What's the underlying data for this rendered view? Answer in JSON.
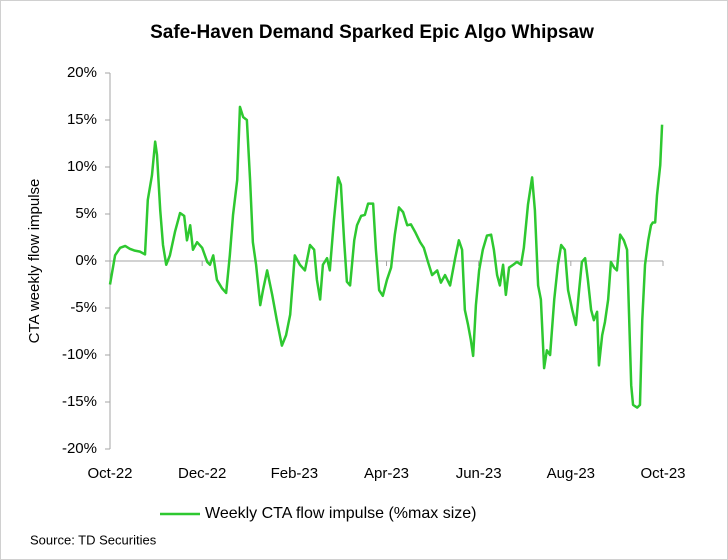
{
  "chart_data": {
    "type": "line",
    "title": "Safe-Haven Demand Sparked Epic Algo Whipsaw",
    "y_label": "CTA weekly flow impulse",
    "source": "Source: TD Securities",
    "xlim": [
      0,
      12
    ],
    "xticks": [
      {
        "value": 0,
        "label": "Oct-22"
      },
      {
        "value": 2,
        "label": "Dec-22"
      },
      {
        "value": 4,
        "label": "Feb-23"
      },
      {
        "value": 6,
        "label": "Apr-23"
      },
      {
        "value": 8,
        "label": "Jun-23"
      },
      {
        "value": 10,
        "label": "Aug-23"
      },
      {
        "value": 12,
        "label": "Oct-23"
      }
    ],
    "ylim": [
      -20,
      20
    ],
    "yticks": [
      {
        "value": -20,
        "label": "-20%"
      },
      {
        "value": -15,
        "label": "-15%"
      },
      {
        "value": -10,
        "label": "-10%"
      },
      {
        "value": -5,
        "label": "-5%"
      },
      {
        "value": 0,
        "label": "0%"
      },
      {
        "value": 5,
        "label": "5%"
      },
      {
        "value": 10,
        "label": "10%"
      },
      {
        "value": 15,
        "label": "15%"
      },
      {
        "value": 20,
        "label": "20%"
      }
    ],
    "grid": false,
    "legend": "bottom",
    "series": [
      {
        "name": "Weekly CTA flow impulse (%max size)",
        "color": "#2ec830",
        "x": [
          0,
          0.11,
          0.22,
          0.33,
          0.43,
          0.54,
          0.65,
          0.76,
          0.82,
          0.91,
          0.98,
          1.02,
          1.09,
          1.15,
          1.22,
          1.3,
          1.41,
          1.52,
          1.61,
          1.67,
          1.74,
          1.8,
          1.89,
          2.0,
          2.11,
          2.17,
          2.24,
          2.32,
          2.43,
          2.52,
          2.6,
          2.67,
          2.76,
          2.82,
          2.89,
          2.97,
          3.04,
          3.1,
          3.17,
          3.26,
          3.32,
          3.41,
          3.52,
          3.62,
          3.73,
          3.82,
          3.91,
          4.01,
          4.12,
          4.23,
          4.34,
          4.43,
          4.49,
          4.56,
          4.62,
          4.71,
          4.77,
          4.86,
          4.95,
          5.01,
          5.08,
          5.14,
          5.21,
          5.3,
          5.36,
          5.45,
          5.53,
          5.6,
          5.71,
          5.77,
          5.84,
          5.92,
          6.01,
          6.1,
          6.18,
          6.27,
          6.36,
          6.45,
          6.53,
          6.62,
          6.73,
          6.81,
          6.9,
          6.99,
          7.1,
          7.18,
          7.27,
          7.38,
          7.49,
          7.57,
          7.64,
          7.7,
          7.77,
          7.83,
          7.88,
          7.94,
          8.01,
          8.09,
          8.18,
          8.27,
          8.33,
          8.4,
          8.46,
          8.53,
          8.59,
          8.66,
          8.75,
          8.83,
          8.92,
          8.98,
          9.07,
          9.16,
          9.22,
          9.29,
          9.35,
          9.42,
          9.48,
          9.55,
          9.64,
          9.72,
          9.79,
          9.87,
          9.94,
          10.03,
          10.11,
          10.18,
          10.24,
          10.31,
          10.37,
          10.44,
          10.5,
          10.57,
          10.61,
          10.68,
          10.74,
          10.81,
          10.87,
          10.94,
          11.0,
          11.07,
          11.15,
          11.22,
          11.26,
          11.31,
          11.35,
          11.44,
          11.5,
          11.55,
          11.61,
          11.68,
          11.74,
          11.78,
          11.83,
          11.87,
          11.94,
          11.98
        ],
        "values": [
          -2.5,
          0.6,
          1.4,
          1.6,
          1.3,
          1.1,
          1,
          0.7,
          6.5,
          9.1,
          12.7,
          11.3,
          5.4,
          1.7,
          -0.4,
          0.6,
          3.1,
          5.1,
          4.8,
          2.2,
          3.8,
          1.2,
          2,
          1.4,
          -0.1,
          -0.4,
          0.6,
          -2,
          -2.9,
          -3.4,
          0.6,
          4.9,
          8.6,
          16.4,
          15.3,
          15,
          8.6,
          2,
          -0.4,
          -4.7,
          -3.1,
          -1,
          -3.6,
          -6.3,
          -9,
          -7.9,
          -5.7,
          0.6,
          -0.4,
          -1,
          1.7,
          1.2,
          -2,
          -4.1,
          -0.4,
          0.3,
          -1,
          4.4,
          8.9,
          8.1,
          2.2,
          -2.2,
          -2.6,
          2.2,
          3.8,
          4.8,
          4.9,
          6.1,
          6.1,
          1.2,
          -3.1,
          -3.7,
          -2,
          -0.7,
          2.8,
          5.7,
          5.2,
          3.8,
          3.9,
          3.1,
          2,
          1.4,
          -0.1,
          -1.5,
          -1,
          -2.3,
          -1.5,
          -2.6,
          0.3,
          2.2,
          1.2,
          -5.2,
          -6.8,
          -8.4,
          -10.1,
          -4.7,
          -1,
          1.2,
          2.7,
          2.8,
          1.2,
          -1.5,
          -2.6,
          -0.4,
          -3.6,
          -0.7,
          -0.4,
          -0.1,
          -0.4,
          1.4,
          6,
          8.9,
          5.4,
          -2.6,
          -4.1,
          -11.4,
          -9.5,
          -10,
          -4.1,
          -0.4,
          1.7,
          1.2,
          -3.1,
          -5.2,
          -6.8,
          -3.1,
          -0.1,
          0.3,
          -2,
          -5.2,
          -6.3,
          -5.4,
          -11.1,
          -7.9,
          -6.5,
          -4.1,
          -0.1,
          -0.7,
          -1,
          2.8,
          2.2,
          1.2,
          -5.2,
          -13.2,
          -15.3,
          -15.6,
          -15.3,
          -6.3,
          -0.4,
          2.2,
          3.8,
          4.1,
          4.1,
          7,
          10.2,
          14.5
        ]
      }
    ]
  }
}
